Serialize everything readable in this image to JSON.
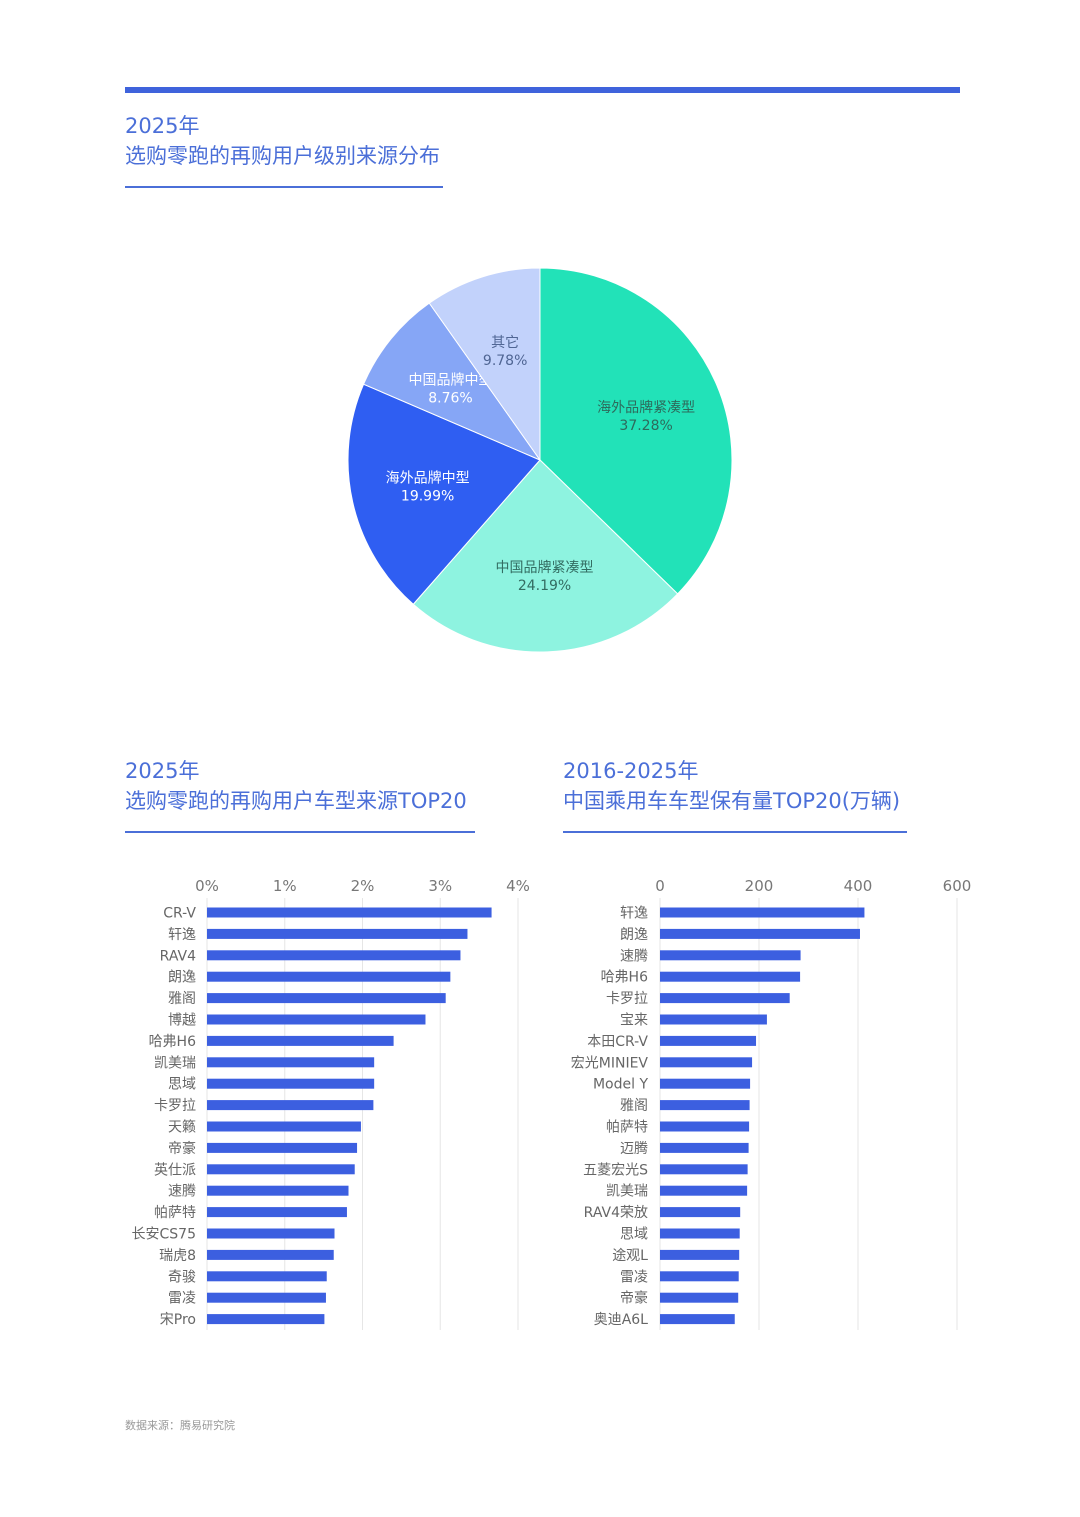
{
  "pie_section": {
    "year": "2025年",
    "heading": "选购零跑的再购用户级别来源分布"
  },
  "left_section": {
    "year": "2025年",
    "heading": "选购零跑的再购用户车型来源TOP20"
  },
  "right_section": {
    "year": "2016-2025年",
    "heading": "中国乘用车车型保有量TOP20(万辆)"
  },
  "source": "数据来源：腾易研究院",
  "chart_data": [
    {
      "type": "pie",
      "title": "选购零跑的再购用户级别来源分布",
      "slices": [
        {
          "label": "海外品牌紧凑型",
          "value": 37.28,
          "display": "37.28%",
          "color": "#22e2b8",
          "label_color": "#2d6b5c"
        },
        {
          "label": "中国品牌紧凑型",
          "value": 24.19,
          "display": "24.19%",
          "color": "#8ef3e0",
          "label_color": "#336d62"
        },
        {
          "label": "海外品牌中型",
          "value": 19.99,
          "display": "19.99%",
          "color": "#2f5ef2",
          "label_color": "#ffffff"
        },
        {
          "label": "中国品牌中型",
          "value": 8.76,
          "display": "8.76%",
          "color": "#86a6f6",
          "label_color": "#ffffff"
        },
        {
          "label": "其它",
          "value": 9.78,
          "display": "9.78%",
          "color": "#c2d2fb",
          "label_color": "#506694"
        }
      ]
    },
    {
      "type": "bar",
      "orientation": "horizontal",
      "title": "选购零跑的再购用户车型来源TOP20",
      "categories": [
        "CR-V",
        "轩逸",
        "RAV4",
        "朗逸",
        "雅阁",
        "博越",
        "哈弗H6",
        "凯美瑞",
        "思域",
        "卡罗拉",
        "天籁",
        "帝豪",
        "英仕派",
        "速腾",
        "帕萨特",
        "长安CS75",
        "瑞虎8",
        "奇骏",
        "雷凌",
        "宋Pro"
      ],
      "values": [
        3.66,
        3.35,
        3.26,
        3.13,
        3.07,
        2.81,
        2.4,
        2.15,
        2.15,
        2.14,
        1.98,
        1.93,
        1.9,
        1.82,
        1.8,
        1.64,
        1.63,
        1.54,
        1.53,
        1.51
      ],
      "ticks": [
        "0%",
        "1%",
        "2%",
        "3%",
        "4%"
      ],
      "xlim": [
        0,
        4
      ],
      "color": "#3c5fe0",
      "grid": true
    },
    {
      "type": "bar",
      "orientation": "horizontal",
      "title": "中国乘用车车型保有量TOP20(万辆)",
      "categories": [
        "轩逸",
        "朗逸",
        "速腾",
        "哈弗H6",
        "卡罗拉",
        "宝来",
        "本田CR-V",
        "宏光MINIEV",
        "Model Y",
        "雅阁",
        "帕萨特",
        "迈腾",
        "五菱宏光S",
        "凯美瑞",
        "RAV4荣放",
        "思域",
        "途观L",
        "雷凌",
        "帝豪",
        "奥迪A6L"
      ],
      "values": [
        413,
        404,
        284,
        283,
        262,
        216,
        194,
        186,
        182,
        181,
        180,
        179,
        177,
        176,
        162,
        161,
        160,
        159,
        158,
        151
      ],
      "ticks": [
        "0",
        "200",
        "400",
        "600"
      ],
      "xlim": [
        0,
        600
      ],
      "color": "#3c5fe0",
      "grid": true
    }
  ]
}
